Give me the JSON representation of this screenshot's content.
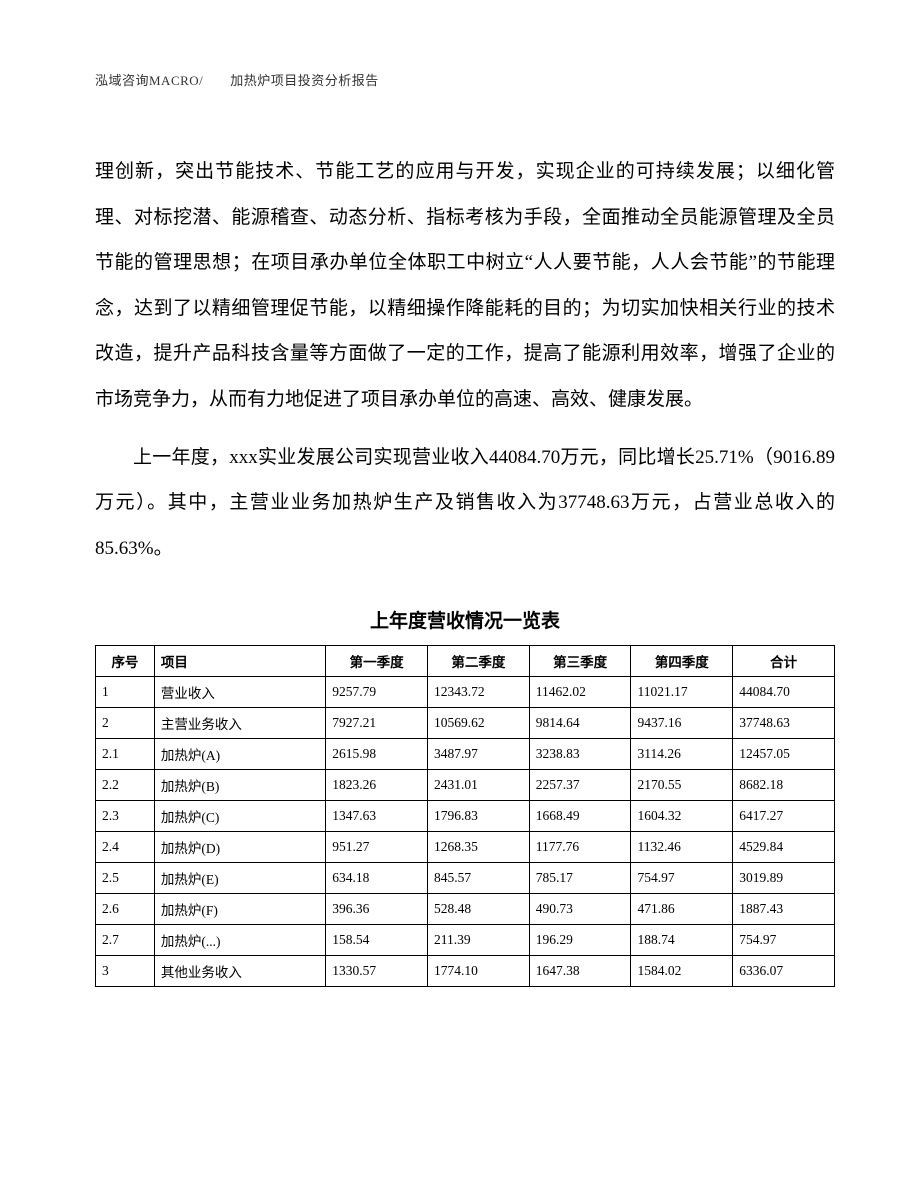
{
  "header": {
    "text": "泓域咨询MACRO/　　加热炉项目投资分析报告"
  },
  "paragraphs": {
    "p1": "理创新，突出节能技术、节能工艺的应用与开发，实现企业的可持续发展；以细化管理、对标挖潜、能源稽查、动态分析、指标考核为手段，全面推动全员能源管理及全员节能的管理思想；在项目承办单位全体职工中树立“人人要节能，人人会节能”的节能理念，达到了以精细管理促节能，以精细操作降能耗的目的；为切实加快相关行业的技术改造，提升产品科技含量等方面做了一定的工作，提高了能源利用效率，增强了企业的市场竞争力，从而有力地促进了项目承办单位的高速、高效、健康发展。",
    "p2": "上一年度，xxx实业发展公司实现营业收入44084.70万元，同比增长25.71%（9016.89万元）。其中，主营业业务加热炉生产及销售收入为37748.63万元，占营业总收入的85.63%。"
  },
  "table": {
    "title": "上年度营收情况一览表",
    "columns": [
      "序号",
      "项目",
      "第一季度",
      "第二季度",
      "第三季度",
      "第四季度",
      "合计"
    ],
    "rows": [
      [
        "1",
        "营业收入",
        "9257.79",
        "12343.72",
        "11462.02",
        "11021.17",
        "44084.70"
      ],
      [
        "2",
        "主营业务收入",
        "7927.21",
        "10569.62",
        "9814.64",
        "9437.16",
        "37748.63"
      ],
      [
        "2.1",
        "加热炉(A)",
        "2615.98",
        "3487.97",
        "3238.83",
        "3114.26",
        "12457.05"
      ],
      [
        "2.2",
        "加热炉(B)",
        "1823.26",
        "2431.01",
        "2257.37",
        "2170.55",
        "8682.18"
      ],
      [
        "2.3",
        "加热炉(C)",
        "1347.63",
        "1796.83",
        "1668.49",
        "1604.32",
        "6417.27"
      ],
      [
        "2.4",
        "加热炉(D)",
        "951.27",
        "1268.35",
        "1177.76",
        "1132.46",
        "4529.84"
      ],
      [
        "2.5",
        "加热炉(E)",
        "634.18",
        "845.57",
        "785.17",
        "754.97",
        "3019.89"
      ],
      [
        "2.6",
        "加热炉(F)",
        "396.36",
        "528.48",
        "490.73",
        "471.86",
        "1887.43"
      ],
      [
        "2.7",
        "加热炉(...)",
        "158.54",
        "211.39",
        "196.29",
        "188.74",
        "754.97"
      ],
      [
        "3",
        "其他业务收入",
        "1330.57",
        "1774.10",
        "1647.38",
        "1584.02",
        "6336.07"
      ]
    ]
  }
}
